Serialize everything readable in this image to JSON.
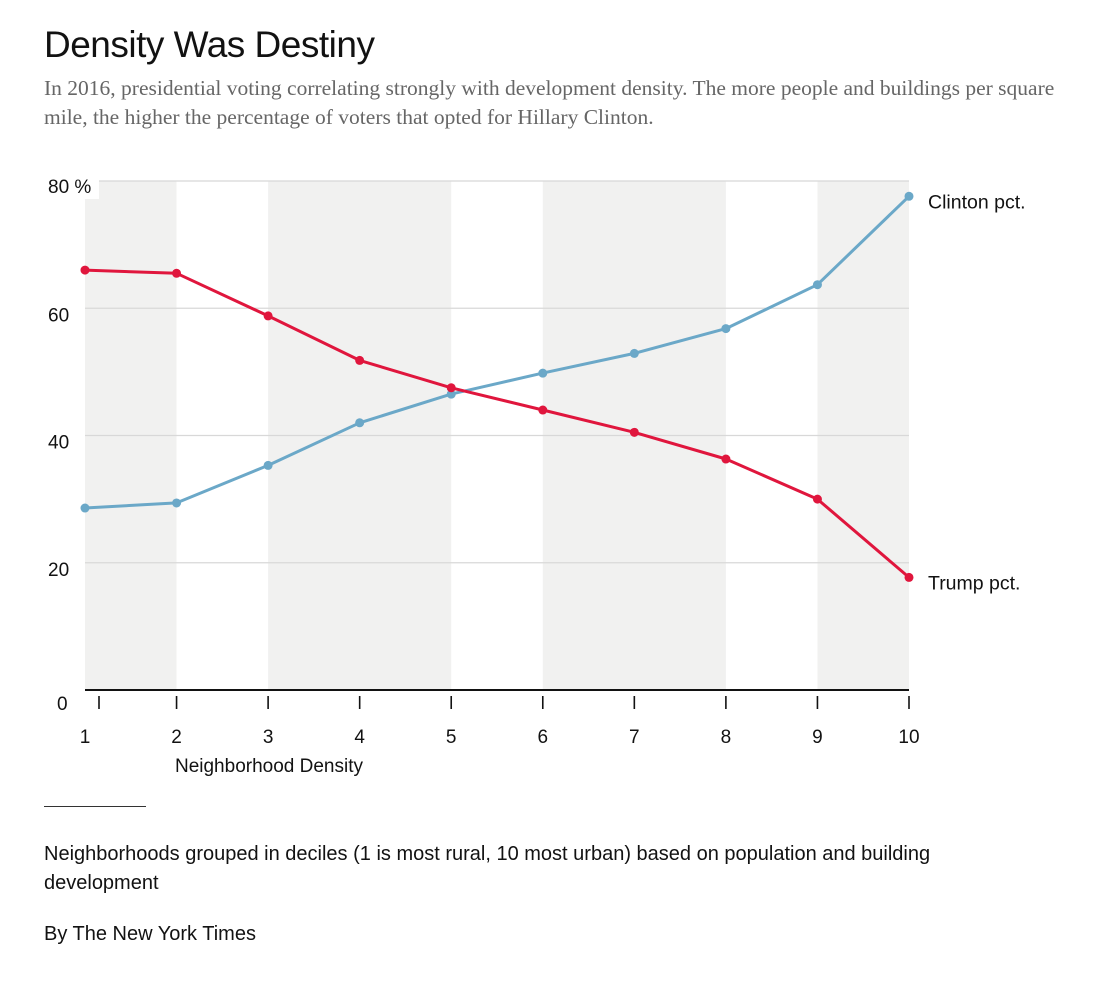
{
  "header": {
    "title": "Density Was Destiny",
    "subtitle": "In 2016, presidential voting correlating strongly with development density. The more people and buildings per square mile, the higher the percentage of voters that opted for Hillary Clinton."
  },
  "chart_data": {
    "type": "line",
    "x": [
      1,
      2,
      3,
      4,
      5,
      6,
      7,
      8,
      9,
      10
    ],
    "xlabel": "Neighborhood Density",
    "ylabel": "",
    "ylim": [
      0,
      80
    ],
    "yticks": [
      0,
      20,
      40,
      60,
      80
    ],
    "ytick_labels": [
      "0",
      "20",
      "40",
      "60",
      "80 %"
    ],
    "xtick_labels": [
      "1",
      "2",
      "3",
      "4",
      "5",
      "6",
      "7",
      "8",
      "9",
      "10"
    ],
    "grid": true,
    "alternating_bands": true,
    "series": [
      {
        "name": "Trump pct.",
        "color": "#e0163d",
        "values": [
          66.0,
          65.5,
          58.8,
          51.8,
          47.5,
          44.0,
          40.5,
          36.3,
          30.0,
          17.7
        ]
      },
      {
        "name": "Clinton pct.",
        "color": "#6ba8c8",
        "values": [
          28.6,
          29.4,
          35.3,
          42.0,
          46.5,
          49.8,
          52.9,
          56.8,
          63.7,
          77.6
        ]
      }
    ]
  },
  "footer": {
    "note": "Neighborhoods grouped in deciles (1 is most rural, 10 most urban) based on population and building development",
    "credit": "By The New York Times"
  }
}
